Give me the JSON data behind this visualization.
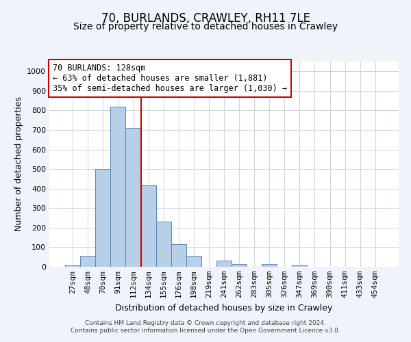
{
  "title": "70, BURLANDS, CRAWLEY, RH11 7LE",
  "subtitle": "Size of property relative to detached houses in Crawley",
  "xlabel": "Distribution of detached houses by size in Crawley",
  "ylabel": "Number of detached properties",
  "footer_line1": "Contains HM Land Registry data © Crown copyright and database right 2024.",
  "footer_line2": "Contains public sector information licensed under the Open Government Licence v3.0.",
  "bin_labels": [
    "27sqm",
    "48sqm",
    "70sqm",
    "91sqm",
    "112sqm",
    "134sqm",
    "155sqm",
    "176sqm",
    "198sqm",
    "219sqm",
    "241sqm",
    "262sqm",
    "283sqm",
    "305sqm",
    "326sqm",
    "347sqm",
    "369sqm",
    "390sqm",
    "411sqm",
    "433sqm",
    "454sqm"
  ],
  "bar_values": [
    8,
    57,
    500,
    820,
    710,
    418,
    230,
    115,
    55,
    0,
    33,
    15,
    0,
    15,
    0,
    8,
    0,
    0,
    0,
    0,
    0
  ],
  "bar_color": "#b8cfe8",
  "bar_edge_color": "#5588bb",
  "grid_color": "#c8d4e8",
  "vline_x_pos": 4.5,
  "vline_color": "#cc0000",
  "annotation_line1": "70 BURLANDS: 128sqm",
  "annotation_line2": "← 63% of detached houses are smaller (1,881)",
  "annotation_line3": "35% of semi-detached houses are larger (1,030) →",
  "annotation_box_color": "white",
  "annotation_box_edge_color": "#cc0000",
  "ylim": [
    0,
    1050
  ],
  "yticks": [
    0,
    100,
    200,
    300,
    400,
    500,
    600,
    700,
    800,
    900,
    1000
  ],
  "background_color": "#f0f4fa",
  "plot_background_color": "white",
  "title_fontsize": 12,
  "subtitle_fontsize": 10,
  "axis_label_fontsize": 9,
  "tick_fontsize": 8
}
